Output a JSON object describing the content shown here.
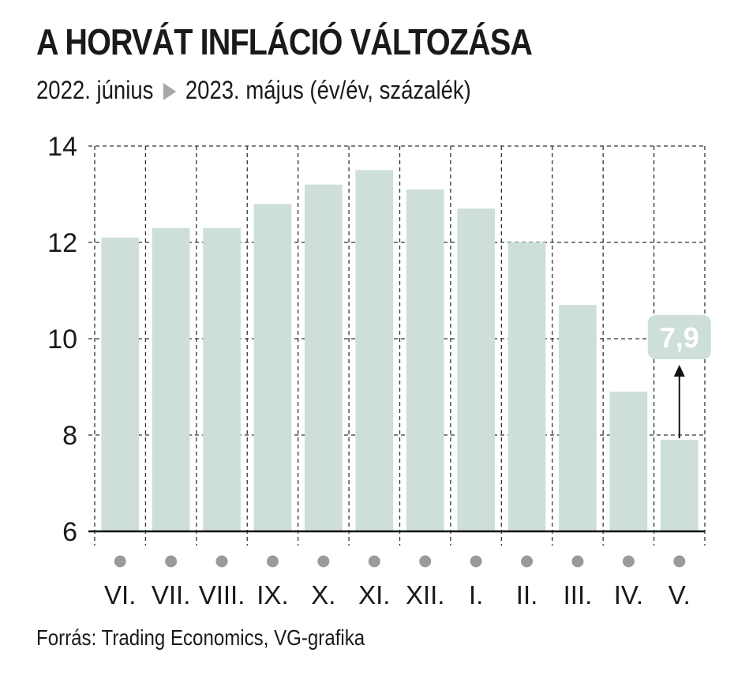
{
  "title": "A HORVÁT INFLÁCIÓ VÁLTOZÁSA",
  "subtitle": {
    "from": "2022. június",
    "to": "2023. május (év/év, százalék)"
  },
  "source": "Forrás: Trading Economics, VG-grafika",
  "colors": {
    "bar": "#cddfd6",
    "grid": "#333333",
    "dot": "#9a9a9a",
    "callout": "#cddfd6"
  },
  "chart_data": {
    "type": "bar",
    "categories": [
      "VI.",
      "VII.",
      "VIII.",
      "IX.",
      "X.",
      "XI.",
      "XII.",
      "I.",
      "II.",
      "III.",
      "IV.",
      "V."
    ],
    "values": [
      12.1,
      12.3,
      12.3,
      12.8,
      13.2,
      13.5,
      13.1,
      12.7,
      12.0,
      10.7,
      8.9,
      7.9
    ],
    "ylim": [
      6,
      14
    ],
    "yticks": [
      6,
      8,
      10,
      12,
      14
    ],
    "grid": true,
    "annotation": {
      "category": "V.",
      "value": 7.9,
      "label": "7,9"
    }
  }
}
